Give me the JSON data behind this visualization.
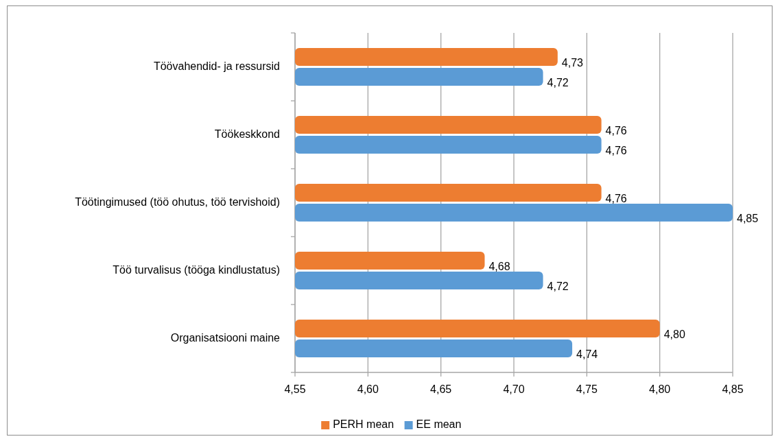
{
  "chart_data": {
    "type": "bar",
    "orientation": "horizontal",
    "categories": [
      "Töövahendid- ja ressursid",
      "Töökeskkond",
      "Töötingimused (töö ohutus, töö tervishoid)",
      "Töö turvalisus (tööga kindlustatus)",
      "Organisatsiooni maine"
    ],
    "series": [
      {
        "name": "PERH mean",
        "color": "#ed7d31",
        "values": [
          4.73,
          4.76,
          4.76,
          4.68,
          4.8
        ],
        "value_labels": [
          "4,73",
          "4,76",
          "4,76",
          "4,68",
          "4,80"
        ]
      },
      {
        "name": "EE mean",
        "color": "#5b9bd5",
        "values": [
          4.72,
          4.76,
          4.85,
          4.72,
          4.74
        ],
        "value_labels": [
          "4,72",
          "4,76",
          "4,85",
          "4,72",
          "4,74"
        ]
      }
    ],
    "xlim": [
      4.55,
      4.85
    ],
    "xticks": [
      {
        "value": 4.55,
        "label": "4,55"
      },
      {
        "value": 4.6,
        "label": "4,60"
      },
      {
        "value": 4.65,
        "label": "4,65"
      },
      {
        "value": 4.7,
        "label": "4,70"
      },
      {
        "value": 4.75,
        "label": "4,75"
      },
      {
        "value": 4.8,
        "label": "4,80"
      },
      {
        "value": 4.85,
        "label": "4,85"
      }
    ],
    "grid": "x",
    "legend": "bottom"
  }
}
